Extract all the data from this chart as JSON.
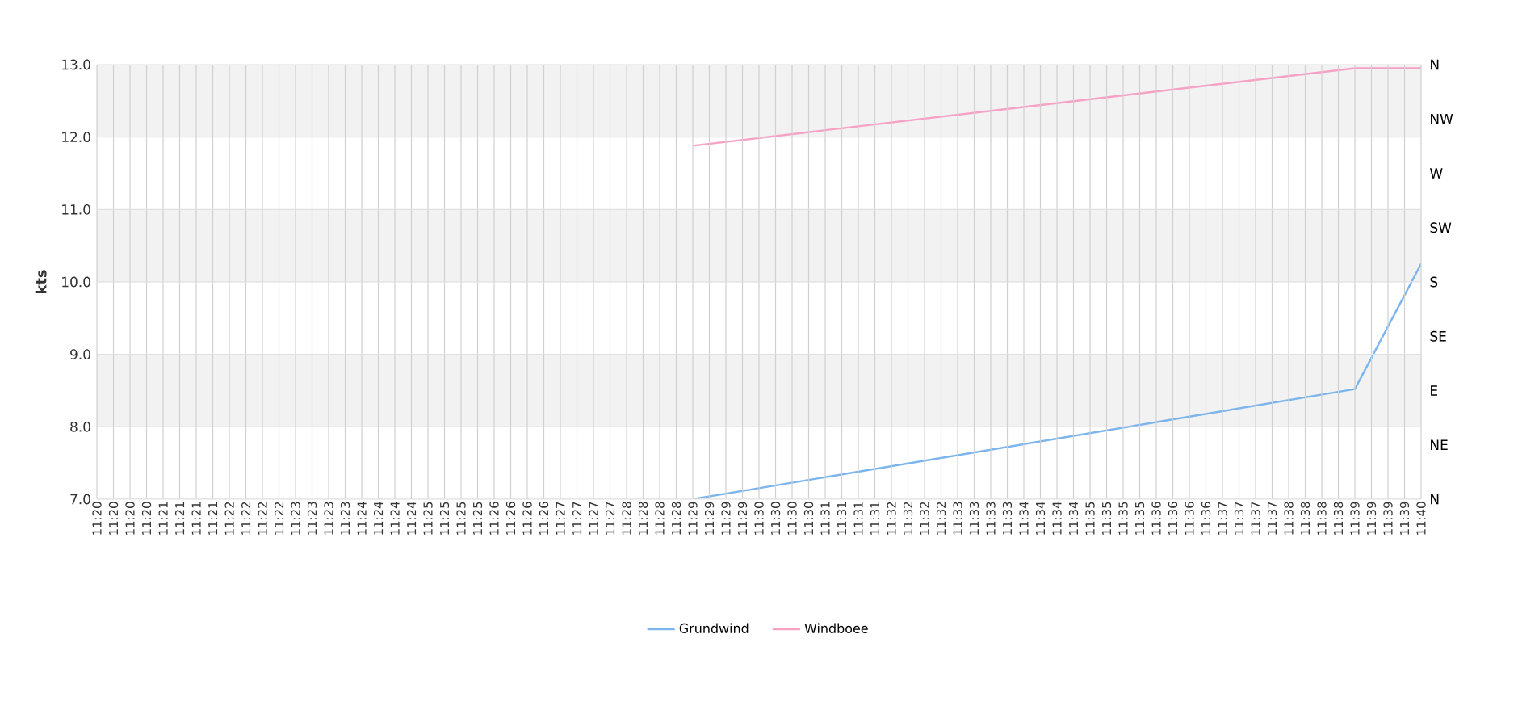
{
  "chart_data": {
    "type": "line",
    "ylabel": "kts",
    "categories": [
      "11:20",
      "11:20",
      "11:20",
      "11:20",
      "11:21",
      "11:21",
      "11:21",
      "11:21",
      "11:22",
      "11:22",
      "11:22",
      "11:22",
      "11:23",
      "11:23",
      "11:23",
      "11:23",
      "11:24",
      "11:24",
      "11:24",
      "11:24",
      "11:25",
      "11:25",
      "11:25",
      "11:25",
      "11:26",
      "11:26",
      "11:26",
      "11:26",
      "11:27",
      "11:27",
      "11:27",
      "11:27",
      "11:28",
      "11:28",
      "11:28",
      "11:28",
      "11:29",
      "11:29",
      "11:29",
      "11:29",
      "11:30",
      "11:30",
      "11:30",
      "11:30",
      "11:31",
      "11:31",
      "11:31",
      "11:31",
      "11:32",
      "11:32",
      "11:32",
      "11:32",
      "11:33",
      "11:33",
      "11:33",
      "11:33",
      "11:34",
      "11:34",
      "11:34",
      "11:34",
      "11:35",
      "11:35",
      "11:35",
      "11:35",
      "11:36",
      "11:36",
      "11:36",
      "11:36",
      "11:37",
      "11:37",
      "11:37",
      "11:37",
      "11:38",
      "11:38",
      "11:38",
      "11:38",
      "11:39",
      "11:39",
      "11:39",
      "11:39",
      "11:40"
    ],
    "series": [
      {
        "name": "Grundwind",
        "color": "#7cb5ec",
        "values": [
          null,
          null,
          null,
          null,
          null,
          null,
          null,
          null,
          null,
          null,
          null,
          null,
          null,
          null,
          null,
          null,
          null,
          null,
          null,
          null,
          null,
          null,
          null,
          null,
          null,
          null,
          null,
          null,
          null,
          null,
          null,
          null,
          null,
          null,
          null,
          null,
          7.0,
          null,
          null,
          null,
          null,
          null,
          null,
          null,
          null,
          null,
          null,
          null,
          null,
          null,
          null,
          null,
          null,
          null,
          null,
          null,
          null,
          null,
          null,
          null,
          null,
          null,
          null,
          null,
          null,
          null,
          null,
          null,
          null,
          null,
          null,
          null,
          null,
          null,
          null,
          null,
          8.52,
          null,
          null,
          null,
          10.25
        ]
      },
      {
        "name": "Windboee",
        "color": "#f7a1c4",
        "values": [
          null,
          null,
          null,
          null,
          null,
          null,
          null,
          null,
          null,
          null,
          null,
          null,
          null,
          null,
          null,
          null,
          null,
          null,
          null,
          null,
          null,
          null,
          null,
          null,
          null,
          null,
          null,
          null,
          null,
          null,
          null,
          null,
          null,
          null,
          null,
          null,
          11.88,
          null,
          null,
          null,
          null,
          null,
          null,
          null,
          null,
          null,
          null,
          null,
          null,
          null,
          null,
          null,
          null,
          null,
          null,
          null,
          null,
          null,
          null,
          null,
          null,
          null,
          null,
          null,
          null,
          null,
          null,
          null,
          null,
          null,
          null,
          null,
          null,
          null,
          null,
          null,
          12.95,
          null,
          null,
          null,
          12.95
        ]
      }
    ],
    "ylim": [
      7,
      13
    ],
    "yticks": [
      {
        "value": 7,
        "label": "7.0"
      },
      {
        "value": 8,
        "label": "8.0"
      },
      {
        "value": 9,
        "label": "9.0"
      },
      {
        "value": 10,
        "label": "10.0"
      },
      {
        "value": 11,
        "label": "11.0"
      },
      {
        "value": 12,
        "label": "12.0"
      },
      {
        "value": 13,
        "label": "13.0"
      }
    ],
    "annotations": [
      "N",
      "NE",
      "E",
      "SE",
      "S",
      "SW",
      "W",
      "NW",
      "N"
    ],
    "bands": [
      {
        "axis": "y",
        "from": 8,
        "to": 9,
        "color": "#f2f2f2"
      },
      {
        "axis": "y",
        "from": 10,
        "to": 11,
        "color": "#f2f2f2"
      },
      {
        "axis": "y",
        "from": 12,
        "to": 13,
        "color": "#f2f2f2"
      }
    ],
    "grid": true,
    "legend": "bottom",
    "marker": "none",
    "line_style": "solid"
  }
}
